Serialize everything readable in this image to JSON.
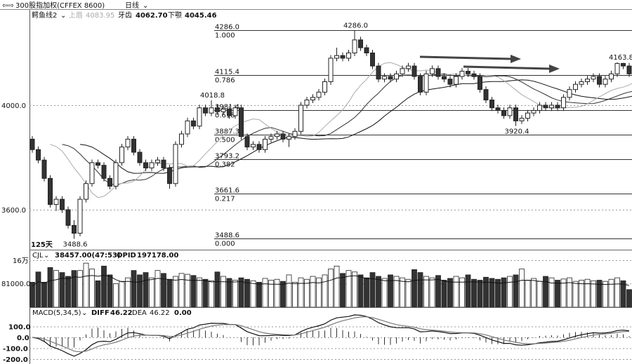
{
  "header": {
    "icon": "back-forward-icon",
    "title": "300股指加权(CFFEX 8600)",
    "period": "日线"
  },
  "indicator": {
    "name": "鳄鱼线2",
    "lip_label": "上唇",
    "lip_value": "4083.95",
    "teeth_label": "牙齿",
    "teeth_value": "4062.70",
    "jaw_label": "下颚",
    "jaw_value": "4045.46"
  },
  "price_axis": {
    "labels": [
      "4000.0",
      "3600.0"
    ],
    "ticks": [
      4000,
      3600
    ]
  },
  "days_label": "125天",
  "annotations": [
    {
      "text": "4286.0",
      "value": 4286,
      "index": 54
    },
    {
      "text": "4018.8",
      "value": 4018.8,
      "index": 30
    },
    {
      "text": "3488.6",
      "value": 3488.6,
      "index": 7
    },
    {
      "text": "3920.4",
      "value": 3920.4,
      "index": 81
    },
    {
      "text": "4163.8",
      "value": 4163.8,
      "index": 98
    }
  ],
  "fibonacci": [
    {
      "price": "4286.0",
      "ratio": "1.000",
      "value": 4286
    },
    {
      "price": "4115.4",
      "ratio": "0.786",
      "value": 4115.4
    },
    {
      "price": "3981.4",
      "ratio": "0.618",
      "value": 3981.4
    },
    {
      "price": "3887.3",
      "ratio": "0.500",
      "value": 3887.3
    },
    {
      "price": "3793.2",
      "ratio": "0.382",
      "value": 3793.2
    },
    {
      "price": "3661.6",
      "ratio": "0.217",
      "value": 3661.6
    },
    {
      "price": "3488.6",
      "ratio": "0.000",
      "value": 3488.6
    }
  ],
  "volume_panel": {
    "name": "CJL",
    "value": "38457.00(47:53)",
    "opid_label": "OPID",
    "opid_value": "197178.00",
    "axis_labels": [
      "16万",
      "81000.0"
    ],
    "axis_ticks": [
      160000,
      81000
    ]
  },
  "macd_panel": {
    "name": "MACD(5,34,5)",
    "diff_label": "DIFF",
    "diff_value": "46.22",
    "dea_label": "DEA",
    "dea_value": "46.22",
    "macd_value": "0.00",
    "axis_labels": [
      "100.0",
      "0.0",
      "-100.0",
      "-200.0"
    ],
    "axis_ticks": [
      100,
      0,
      -100,
      -200
    ]
  },
  "colors": {
    "up": "#ffffff",
    "down": "#333333",
    "outline": "#222222",
    "grid": "#999999"
  },
  "chart_data": {
    "type": "candlestick",
    "candles": [
      [
        3870,
        3882,
        3818,
        3830
      ],
      [
        3830,
        3842,
        3778,
        3790
      ],
      [
        3790,
        3802,
        3708,
        3720
      ],
      [
        3720,
        3732,
        3608,
        3620
      ],
      [
        3620,
        3652,
        3595,
        3640
      ],
      [
        3640,
        3652,
        3588,
        3600
      ],
      [
        3600,
        3612,
        3528,
        3540
      ],
      [
        3540,
        3560,
        3488.6,
        3510
      ],
      [
        3510,
        3652,
        3498,
        3640
      ],
      [
        3640,
        3712,
        3628,
        3700
      ],
      [
        3700,
        3792,
        3688,
        3780
      ],
      [
        3780,
        3792,
        3758,
        3770
      ],
      [
        3770,
        3782,
        3708,
        3720
      ],
      [
        3720,
        3732,
        3678,
        3690
      ],
      [
        3690,
        3792,
        3678,
        3780
      ],
      [
        3780,
        3852,
        3768,
        3840
      ],
      [
        3840,
        3882,
        3828,
        3870
      ],
      [
        3870,
        3882,
        3808,
        3820
      ],
      [
        3820,
        3832,
        3768,
        3780
      ],
      [
        3780,
        3792,
        3748,
        3760
      ],
      [
        3760,
        3792,
        3748,
        3780
      ],
      [
        3780,
        3802,
        3768,
        3790
      ],
      [
        3790,
        3802,
        3748,
        3760
      ],
      [
        3760,
        3772,
        3680,
        3700
      ],
      [
        3700,
        3862,
        3688,
        3850
      ],
      [
        3850,
        3902,
        3838,
        3890
      ],
      [
        3890,
        3952,
        3878,
        3940
      ],
      [
        3940,
        3952,
        3908,
        3920
      ],
      [
        3920,
        4002,
        3908,
        3990
      ],
      [
        3990,
        4002,
        3958,
        3970
      ],
      [
        3970,
        4018.8,
        3958,
        3990
      ],
      [
        3990,
        4002,
        3963,
        3975
      ],
      [
        3975,
        3997,
        3963,
        3985
      ],
      [
        3985,
        3997,
        3948,
        3960
      ],
      [
        3960,
        4002,
        3948,
        3990
      ],
      [
        3990,
        4002,
        3868,
        3880
      ],
      [
        3880,
        3892,
        3828,
        3840
      ],
      [
        3840,
        3862,
        3828,
        3850
      ],
      [
        3850,
        3862,
        3818,
        3830
      ],
      [
        3830,
        3882,
        3818,
        3870
      ],
      [
        3870,
        3892,
        3858,
        3880
      ],
      [
        3880,
        3902,
        3868,
        3890
      ],
      [
        3890,
        3902,
        3858,
        3870
      ],
      [
        3870,
        3892,
        3840,
        3880
      ],
      [
        3880,
        3912,
        3868,
        3900
      ],
      [
        3900,
        4012,
        3888,
        4000
      ],
      [
        4000,
        4032,
        3988,
        4020
      ],
      [
        4020,
        4042,
        4008,
        4030
      ],
      [
        4030,
        4062,
        4018,
        4050
      ],
      [
        4050,
        4102,
        4038,
        4090
      ],
      [
        4090,
        4192,
        4078,
        4180
      ],
      [
        4180,
        4220,
        4168,
        4190
      ],
      [
        4190,
        4202,
        4168,
        4180
      ],
      [
        4180,
        4212,
        4168,
        4200
      ],
      [
        4200,
        4286,
        4188,
        4250
      ],
      [
        4250,
        4262,
        4208,
        4220
      ],
      [
        4220,
        4232,
        4188,
        4200
      ],
      [
        4200,
        4212,
        4138,
        4150
      ],
      [
        4150,
        4162,
        4088,
        4100
      ],
      [
        4100,
        4122,
        4088,
        4110
      ],
      [
        4110,
        4122,
        4088,
        4100
      ],
      [
        4100,
        4132,
        4088,
        4120
      ],
      [
        4120,
        4152,
        4108,
        4140
      ],
      [
        4140,
        4162,
        4128,
        4150
      ],
      [
        4150,
        4162,
        4098,
        4110
      ],
      [
        4110,
        4122,
        4038,
        4050
      ],
      [
        4050,
        4132,
        4038,
        4120
      ],
      [
        4120,
        4152,
        4108,
        4140
      ],
      [
        4140,
        4152,
        4098,
        4110
      ],
      [
        4110,
        4122,
        4088,
        4100
      ],
      [
        4100,
        4112,
        4068,
        4080
      ],
      [
        4080,
        4122,
        4068,
        4110
      ],
      [
        4110,
        4142,
        4098,
        4130
      ],
      [
        4130,
        4142,
        4108,
        4120
      ],
      [
        4120,
        4132,
        4098,
        4110
      ],
      [
        4110,
        4122,
        4048,
        4060
      ],
      [
        4060,
        4072,
        4008,
        4020
      ],
      [
        4020,
        4032,
        3978,
        3990
      ],
      [
        3990,
        4002,
        3968,
        3980
      ],
      [
        3980,
        3992,
        3948,
        3960
      ],
      [
        3960,
        4002,
        3948,
        3990
      ],
      [
        3990,
        4002,
        3920.4,
        3940
      ],
      [
        3940,
        3962,
        3928,
        3950
      ],
      [
        3950,
        3982,
        3938,
        3970
      ],
      [
        3970,
        3992,
        3958,
        3980
      ],
      [
        3980,
        4012,
        3968,
        4000
      ],
      [
        4000,
        4012,
        3978,
        3990
      ],
      [
        3990,
        4012,
        3978,
        4000
      ],
      [
        4000,
        4012,
        3978,
        3990
      ],
      [
        3990,
        4042,
        3978,
        4030
      ],
      [
        4030,
        4072,
        4018,
        4060
      ],
      [
        4060,
        4092,
        4048,
        4080
      ],
      [
        4080,
        4102,
        4068,
        4090
      ],
      [
        4090,
        4112,
        4078,
        4100
      ],
      [
        4100,
        4122,
        4088,
        4110
      ],
      [
        4110,
        4122,
        4068,
        4080
      ],
      [
        4080,
        4112,
        4068,
        4100
      ],
      [
        4100,
        4132,
        4088,
        4120
      ],
      [
        4120,
        4163.8,
        4108,
        4160
      ],
      [
        4160,
        4162,
        4138,
        4150
      ],
      [
        4150,
        4162,
        4108,
        4120
      ]
    ],
    "volume": [
      85000,
      120000,
      85000,
      135000,
      125000,
      118000,
      105000,
      125000,
      125000,
      150000,
      130000,
      90000,
      140000,
      110000,
      80000,
      88000,
      100000,
      125000,
      110000,
      118000,
      100000,
      125000,
      115000,
      95000,
      105000,
      115000,
      112000,
      108000,
      100000,
      95000,
      90000,
      120000,
      105000,
      98000,
      92000,
      100000,
      95000,
      90000,
      85000,
      98000,
      92000,
      95000,
      88000,
      110000,
      85000,
      100000,
      95000,
      105000,
      100000,
      110000,
      130000,
      140000,
      115000,
      125000,
      120000,
      110000,
      100000,
      118000,
      105000,
      98000,
      110000,
      105000,
      100000,
      95000,
      128000,
      118000,
      105000,
      100000,
      108000,
      92000,
      98000,
      105000,
      100000,
      110000,
      95000,
      92000,
      102000,
      98000,
      95000,
      100000,
      105000,
      110000,
      130000,
      92000,
      98000,
      88000,
      105000,
      100000,
      92000,
      96000,
      100000,
      88000,
      92000,
      95000,
      90000,
      92000,
      88000,
      95000,
      100000,
      90000,
      60000
    ],
    "price_range": [
      3460,
      4300
    ],
    "volume_range": [
      0,
      175000
    ],
    "macd_range": [
      -230,
      150
    ]
  }
}
